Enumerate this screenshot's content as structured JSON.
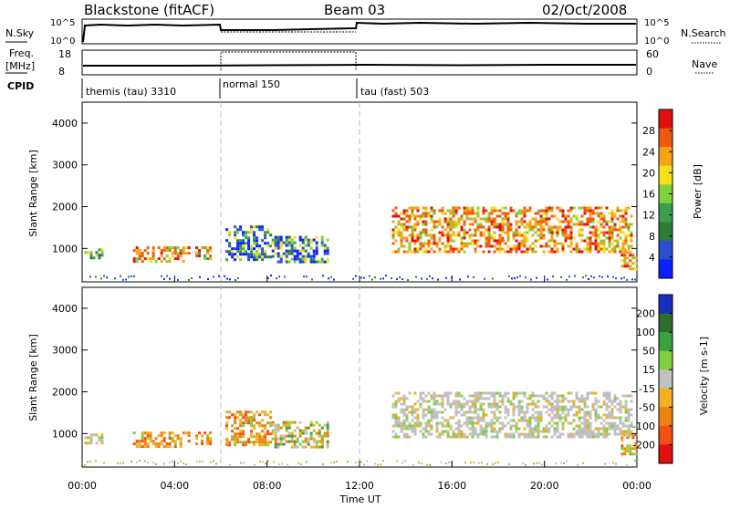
{
  "header": {
    "station": "Blackstone (fitACF)",
    "beam": "Beam 03",
    "date": "02/Oct/2008"
  },
  "labels": {
    "nsky": "N.Sky",
    "nsky_top": "10^5",
    "nsky_bottom": "10^0",
    "nsearch": "N.Search",
    "freq": "Freq.",
    "freq_unit": "[MHz]",
    "freq_top": "18",
    "freq_bottom": "8",
    "nave": "Nave",
    "nave_top": "60",
    "nave_bottom": "0",
    "cpid": "CPID"
  },
  "modes": [
    {
      "label": "themis (tau) 3310",
      "start_hour": 0
    },
    {
      "label": "normal 150",
      "start_hour": 6
    },
    {
      "label": "tau (fast) 503",
      "start_hour": 12
    }
  ],
  "chart_data": {
    "type": "heatmap",
    "xlabel": "Time UT",
    "x_ticks": [
      "00:00",
      "04:00",
      "08:00",
      "12:00",
      "16:00",
      "20:00",
      "00:00"
    ],
    "xlim_hours": [
      0,
      24
    ],
    "panels": [
      {
        "name": "power",
        "ylabel": "Slant Range [km]",
        "ylim": [
          200,
          4500
        ],
        "y_ticks": [
          1000,
          2000,
          3000,
          4000
        ],
        "colorbar": {
          "label": "Power [dB]",
          "range": [
            0,
            32
          ],
          "ticks": [
            "4",
            "8",
            "12",
            "16",
            "20",
            "24",
            "28"
          ],
          "colors": [
            "#0a20ff",
            "#2a4fd0",
            "#2e7b3a",
            "#3aa050",
            "#7dd13a",
            "#f6e01a",
            "#f6a316",
            "#f05a10",
            "#e01010"
          ]
        }
      },
      {
        "name": "velocity",
        "ylabel": "Slant Range [km]",
        "ylim": [
          200,
          4500
        ],
        "y_ticks": [
          1000,
          2000,
          3000,
          4000
        ],
        "colorbar": {
          "label": "Velocity [m s-1]",
          "ticks": [
            "200",
            "100",
            "50",
            "15",
            "-15",
            "-50",
            "-100",
            "-200"
          ],
          "colors": [
            "#1a2fc0",
            "#2e6e2e",
            "#3ca03c",
            "#80d040",
            "#c0c0c0",
            "#f0b020",
            "#f08010",
            "#f05010",
            "#e01010"
          ]
        }
      }
    ],
    "echo_regions": [
      {
        "t0": 0.1,
        "t1": 0.9,
        "r0": 750,
        "r1": 1000,
        "power": "medium",
        "velocity": "slight-negative"
      },
      {
        "t0": 2.2,
        "t1": 4.6,
        "r0": 700,
        "r1": 1050,
        "power": "high",
        "velocity": "negative"
      },
      {
        "t0": 4.9,
        "t1": 5.6,
        "r0": 750,
        "r1": 1050,
        "power": "medium-high",
        "velocity": "negative"
      },
      {
        "t0": 6.2,
        "t1": 8.2,
        "r0": 700,
        "r1": 1550,
        "power": "mixed",
        "velocity": "negative"
      },
      {
        "t0": 8.2,
        "t1": 10.6,
        "r0": 650,
        "r1": 1300,
        "power": "mixed",
        "velocity": "mixed"
      },
      {
        "t0": 13.4,
        "t1": 23.8,
        "r0": 900,
        "r1": 2000,
        "power": "high",
        "velocity": "near-zero"
      },
      {
        "t0": 23.3,
        "t1": 24,
        "r0": 500,
        "r1": 1000,
        "power": "high",
        "velocity": "negative"
      }
    ]
  }
}
